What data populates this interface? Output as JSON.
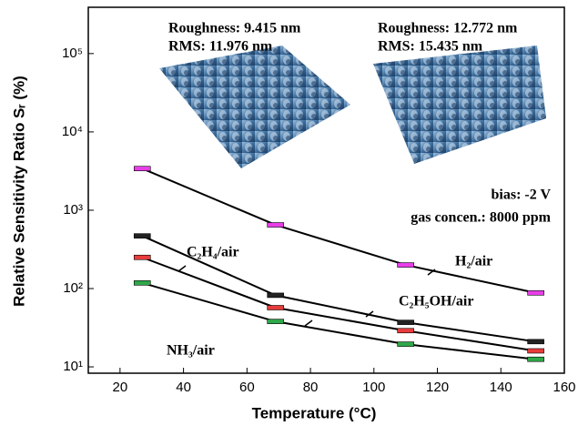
{
  "chart_data": {
    "type": "line",
    "xlabel": "Temperature (°C)",
    "ylabel": "Relative Sensitivity Ratio Sᵣ (%)",
    "x": [
      27,
      69,
      110,
      151
    ],
    "series": [
      {
        "name": "H₂/air",
        "color": "#e83ee8",
        "values": [
          3400,
          650,
          200,
          88
        ]
      },
      {
        "name": "C₂H₄/air",
        "color": "#222222",
        "values": [
          470,
          82,
          37,
          21
        ]
      },
      {
        "name": "C₂H₅OH/air",
        "color": "#e83c3c",
        "values": [
          250,
          57,
          29,
          16
        ]
      },
      {
        "name": "NH₃/air",
        "color": "#2fa84a",
        "values": [
          118,
          38,
          19.5,
          12.5
        ]
      }
    ],
    "xlim": [
      10,
      160
    ],
    "xticks": [
      20,
      40,
      60,
      80,
      100,
      120,
      140,
      160
    ],
    "ylim": [
      8.3,
      390000
    ],
    "log_y": true,
    "yticks": [
      {
        "value": 10,
        "label": "10¹"
      },
      {
        "value": 100,
        "label": "10²"
      },
      {
        "value": 1000,
        "label": "10³"
      },
      {
        "value": 10000,
        "label": "10⁴"
      },
      {
        "value": 100000,
        "label": "10⁵"
      }
    ],
    "annotations": [
      "bias: -2 V",
      "gas concen.: 8000 ppm",
      "Roughness: 9.415 nm",
      "RMS: 11.976 nm",
      "Roughness: 12.772 nm",
      "RMS: 15.435 nm"
    ]
  }
}
